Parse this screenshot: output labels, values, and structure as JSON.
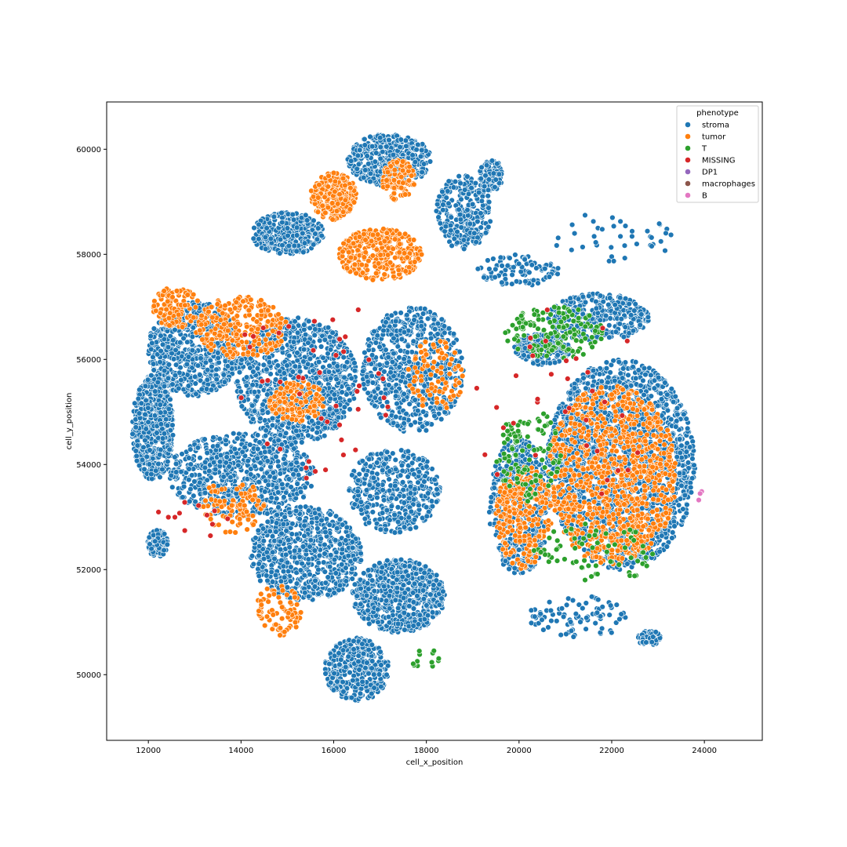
{
  "chart_data": {
    "type": "scatter",
    "title": "",
    "xlabel": "cell_x_position",
    "ylabel": "cell_y_position",
    "xlim": [
      11100,
      25250
    ],
    "ylim": [
      48750,
      60900
    ],
    "xticks": [
      12000,
      14000,
      16000,
      18000,
      20000,
      22000,
      24000
    ],
    "yticks": [
      50000,
      52000,
      54000,
      56000,
      58000,
      60000
    ],
    "grid": false,
    "legend": {
      "title": "phenotype",
      "placement": "top-right",
      "entries": [
        "stroma",
        "tumor",
        "T",
        "MISSING",
        "DP1",
        "macrophages",
        "B"
      ]
    },
    "colors": {
      "stroma": "#1f77b4",
      "tumor": "#ff7f0e",
      "T": "#2ca02c",
      "MISSING": "#d62728",
      "DP1": "#9467bd",
      "macrophages": "#8c564b",
      "B": "#e377c2"
    },
    "regions": [
      {
        "phenotype": "stroma",
        "cx": 17200,
        "cy": 59800,
        "rx": 900,
        "ry": 500,
        "n": 420
      },
      {
        "phenotype": "stroma",
        "cx": 15000,
        "cy": 58400,
        "rx": 800,
        "ry": 400,
        "n": 380
      },
      {
        "phenotype": "stroma",
        "cx": 13000,
        "cy": 56200,
        "rx": 1000,
        "ry": 900,
        "n": 650
      },
      {
        "phenotype": "stroma",
        "cx": 12100,
        "cy": 54700,
        "rx": 450,
        "ry": 1000,
        "n": 520
      },
      {
        "phenotype": "stroma",
        "cx": 15200,
        "cy": 55600,
        "rx": 1300,
        "ry": 1200,
        "n": 950
      },
      {
        "phenotype": "stroma",
        "cx": 14000,
        "cy": 53800,
        "rx": 1600,
        "ry": 800,
        "n": 700
      },
      {
        "phenotype": "stroma",
        "cx": 15400,
        "cy": 52300,
        "rx": 1200,
        "ry": 900,
        "n": 700
      },
      {
        "phenotype": "stroma",
        "cx": 17400,
        "cy": 51500,
        "rx": 1000,
        "ry": 700,
        "n": 650
      },
      {
        "phenotype": "stroma",
        "cx": 16500,
        "cy": 50100,
        "rx": 700,
        "ry": 600,
        "n": 380
      },
      {
        "phenotype": "stroma",
        "cx": 17700,
        "cy": 55800,
        "rx": 1100,
        "ry": 1200,
        "n": 650
      },
      {
        "phenotype": "stroma",
        "cx": 17300,
        "cy": 53500,
        "rx": 1000,
        "ry": 800,
        "n": 420
      },
      {
        "phenotype": "stroma",
        "cx": 18800,
        "cy": 58800,
        "rx": 600,
        "ry": 700,
        "n": 260
      },
      {
        "phenotype": "stroma",
        "cx": 19400,
        "cy": 59500,
        "rx": 250,
        "ry": 300,
        "n": 90
      },
      {
        "phenotype": "stroma",
        "cx": 22200,
        "cy": 54000,
        "rx": 1600,
        "ry": 2000,
        "n": 1900
      },
      {
        "phenotype": "stroma",
        "cx": 20000,
        "cy": 53200,
        "rx": 650,
        "ry": 1300,
        "n": 500
      },
      {
        "phenotype": "stroma",
        "cx": 21700,
        "cy": 56800,
        "rx": 1100,
        "ry": 450,
        "n": 320
      },
      {
        "phenotype": "stroma",
        "cx": 20500,
        "cy": 56200,
        "rx": 600,
        "ry": 300,
        "n": 180
      },
      {
        "phenotype": "stroma",
        "cx": 20000,
        "cy": 57700,
        "rx": 900,
        "ry": 300,
        "n": 90
      },
      {
        "phenotype": "stroma",
        "cx": 21300,
        "cy": 51100,
        "rx": 1100,
        "ry": 400,
        "n": 90
      },
      {
        "phenotype": "stroma",
        "cx": 12200,
        "cy": 52500,
        "rx": 220,
        "ry": 260,
        "n": 110
      },
      {
        "phenotype": "stroma",
        "cx": 22800,
        "cy": 50700,
        "rx": 260,
        "ry": 150,
        "n": 60
      },
      {
        "phenotype": "stroma",
        "cx": 22000,
        "cy": 58300,
        "rx": 1400,
        "ry": 500,
        "n": 40
      },
      {
        "phenotype": "tumor",
        "cx": 16000,
        "cy": 59100,
        "rx": 500,
        "ry": 450,
        "n": 260
      },
      {
        "phenotype": "tumor",
        "cx": 17000,
        "cy": 58000,
        "rx": 900,
        "ry": 500,
        "n": 320
      },
      {
        "phenotype": "tumor",
        "cx": 17400,
        "cy": 59400,
        "rx": 350,
        "ry": 400,
        "n": 110
      },
      {
        "phenotype": "tumor",
        "cx": 14000,
        "cy": 56600,
        "rx": 1000,
        "ry": 600,
        "n": 260
      },
      {
        "phenotype": "tumor",
        "cx": 12600,
        "cy": 57000,
        "rx": 500,
        "ry": 400,
        "n": 110
      },
      {
        "phenotype": "tumor",
        "cx": 15200,
        "cy": 55200,
        "rx": 600,
        "ry": 400,
        "n": 130
      },
      {
        "phenotype": "tumor",
        "cx": 13800,
        "cy": 53200,
        "rx": 700,
        "ry": 500,
        "n": 90
      },
      {
        "phenotype": "tumor",
        "cx": 14800,
        "cy": 51200,
        "rx": 500,
        "ry": 500,
        "n": 80
      },
      {
        "phenotype": "tumor",
        "cx": 22000,
        "cy": 53800,
        "rx": 1400,
        "ry": 1700,
        "n": 900
      },
      {
        "phenotype": "tumor",
        "cx": 20100,
        "cy": 53000,
        "rx": 600,
        "ry": 1000,
        "n": 250
      },
      {
        "phenotype": "tumor",
        "cx": 18200,
        "cy": 55700,
        "rx": 600,
        "ry": 700,
        "n": 90
      },
      {
        "phenotype": "T",
        "cx": 20800,
        "cy": 56500,
        "rx": 1100,
        "ry": 500,
        "n": 150
      },
      {
        "phenotype": "T",
        "cx": 20200,
        "cy": 54200,
        "rx": 700,
        "ry": 900,
        "n": 100
      },
      {
        "phenotype": "T",
        "cx": 21600,
        "cy": 52300,
        "rx": 1300,
        "ry": 600,
        "n": 70
      },
      {
        "phenotype": "T",
        "cx": 18000,
        "cy": 50300,
        "rx": 400,
        "ry": 200,
        "n": 12
      },
      {
        "phenotype": "MISSING",
        "cx": 15500,
        "cy": 55500,
        "rx": 1800,
        "ry": 1800,
        "n": 45
      },
      {
        "phenotype": "MISSING",
        "cx": 21000,
        "cy": 55000,
        "rx": 2000,
        "ry": 2000,
        "n": 35
      },
      {
        "phenotype": "MISSING",
        "cx": 13000,
        "cy": 53000,
        "rx": 800,
        "ry": 500,
        "n": 12
      },
      {
        "phenotype": "B",
        "cx": 23900,
        "cy": 53300,
        "rx": 80,
        "ry": 250,
        "n": 3
      }
    ]
  }
}
